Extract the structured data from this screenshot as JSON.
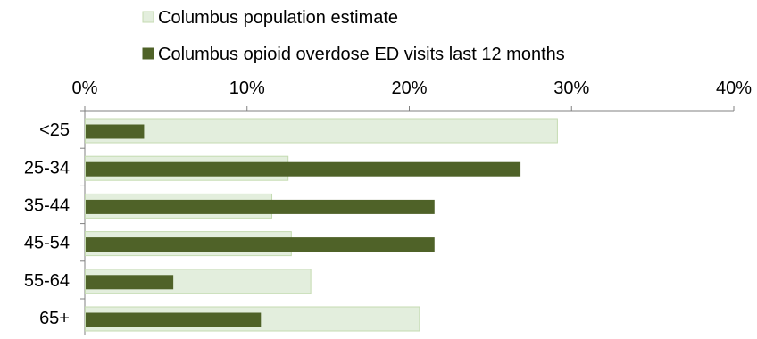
{
  "chart_data": {
    "type": "bar",
    "orientation": "horizontal",
    "title": "",
    "xlabel": "",
    "ylabel": "",
    "xlim": [
      0,
      40
    ],
    "x_tick_values": [
      0,
      10,
      20,
      30,
      40
    ],
    "x_tick_labels": [
      "0%",
      "10%",
      "20%",
      "30%",
      "40%"
    ],
    "x_axis_position": "top",
    "grid": false,
    "legend_position": "top",
    "categories": [
      "<25",
      "25-34",
      "35-44",
      "45-54",
      "55-64",
      "65+"
    ],
    "series": [
      {
        "name": "Columbus population estimate",
        "values": [
          29.1,
          12.5,
          11.5,
          12.7,
          13.9,
          20.6
        ],
        "color": "#e3eedd",
        "stroke": "#c4dbb1"
      },
      {
        "name": "Columbus opioid overdose ED visits last 12 months",
        "values": [
          3.6,
          26.8,
          21.5,
          21.5,
          5.4,
          10.8
        ],
        "color": "#4f6228",
        "stroke": "#4f6228"
      }
    ]
  }
}
